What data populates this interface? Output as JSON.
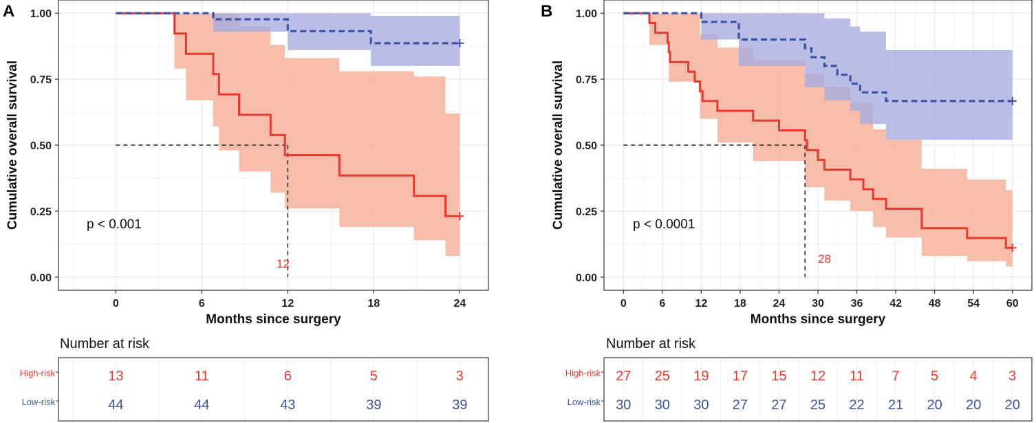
{
  "colors": {
    "high": "#e8392e",
    "low": "#3a53a4",
    "high_band": "#f4b29c",
    "low_band": "#a9acde",
    "grid": "#ebebeb"
  },
  "chart_data": [
    {
      "type": "line",
      "panel_label": "A",
      "ylabel": "Cumulative overall survival",
      "xlabel": "Months since surgery",
      "xlim": [
        -4,
        26
      ],
      "ylim": [
        -0.05,
        1.05
      ],
      "x_ticks": [
        0,
        6,
        12,
        18,
        24
      ],
      "y_ticks": [
        0,
        0.25,
        0.5,
        0.75,
        1
      ],
      "y_tick_labels": [
        "0.00",
        "0.25",
        "0.50",
        "0.75",
        "1.00"
      ],
      "p_value": "p < 0.001",
      "median_label": "12",
      "median_x": 12,
      "high_curve": [
        [
          0,
          1
        ],
        [
          4.1,
          1
        ],
        [
          4.1,
          0.923
        ],
        [
          4.9,
          0.923
        ],
        [
          4.9,
          0.846
        ],
        [
          6.8,
          0.846
        ],
        [
          6.8,
          0.769
        ],
        [
          7.2,
          0.769
        ],
        [
          7.2,
          0.692
        ],
        [
          8.6,
          0.692
        ],
        [
          8.6,
          0.615
        ],
        [
          10.8,
          0.615
        ],
        [
          10.8,
          0.538
        ],
        [
          11.8,
          0.538
        ],
        [
          11.8,
          0.462
        ],
        [
          15.6,
          0.462
        ],
        [
          15.6,
          0.385
        ],
        [
          20.8,
          0.385
        ],
        [
          20.8,
          0.308
        ],
        [
          23,
          0.308
        ],
        [
          23,
          0.231
        ],
        [
          24,
          0.231
        ]
      ],
      "high_band": {
        "x": [
          0,
          4.1,
          4.9,
          6.8,
          7.2,
          8.6,
          10.8,
          11.8,
          15.6,
          20.8,
          23,
          24
        ],
        "upper": [
          1,
          1,
          1,
          1,
          1,
          0.95,
          0.88,
          0.83,
          0.78,
          0.76,
          0.62,
          0.62
        ],
        "lower": [
          1,
          0.79,
          0.67,
          0.57,
          0.48,
          0.4,
          0.32,
          0.26,
          0.19,
          0.14,
          0.08,
          0.08
        ]
      },
      "low_curve": [
        [
          0,
          1
        ],
        [
          6.8,
          1
        ],
        [
          6.8,
          0.977
        ],
        [
          12,
          0.977
        ],
        [
          12,
          0.932
        ],
        [
          17.8,
          0.932
        ],
        [
          17.8,
          0.886
        ],
        [
          24,
          0.886
        ]
      ],
      "low_band": {
        "x": [
          0,
          6.8,
          12,
          17.8,
          24
        ],
        "upper": [
          1,
          1,
          1,
          0.99,
          0.99
        ],
        "lower": [
          1,
          0.93,
          0.86,
          0.8,
          0.8
        ]
      },
      "risk": {
        "title": "Number at risk",
        "high_label": "High-risk",
        "low_label": "Low-risk",
        "times": [
          0,
          6,
          12,
          18,
          24
        ],
        "high": [
          "13",
          "11",
          "6",
          "5",
          "3"
        ],
        "low": [
          "44",
          "44",
          "43",
          "39",
          "39"
        ]
      }
    },
    {
      "type": "line",
      "panel_label": "B",
      "ylabel": "Cumulative overall survival",
      "xlabel": "Months since surgery",
      "xlim": [
        -3,
        63
      ],
      "ylim": [
        -0.05,
        1.05
      ],
      "x_ticks": [
        0,
        6,
        12,
        18,
        24,
        30,
        36,
        42,
        48,
        54,
        60
      ],
      "y_ticks": [
        0,
        0.25,
        0.5,
        0.75,
        1
      ],
      "y_tick_labels": [
        "0.00",
        "0.25",
        "0.50",
        "0.75",
        "1.00"
      ],
      "p_value": "p < 0.0001",
      "median_label": "28",
      "median_x": 28,
      "high_curve": [
        [
          0,
          1
        ],
        [
          4,
          1
        ],
        [
          4,
          0.963
        ],
        [
          4.9,
          0.963
        ],
        [
          4.9,
          0.926
        ],
        [
          6.8,
          0.926
        ],
        [
          6.8,
          0.889
        ],
        [
          7,
          0.889
        ],
        [
          7,
          0.852
        ],
        [
          7.2,
          0.852
        ],
        [
          7.2,
          0.815
        ],
        [
          10,
          0.815
        ],
        [
          10,
          0.778
        ],
        [
          11,
          0.778
        ],
        [
          11,
          0.741
        ],
        [
          11.8,
          0.741
        ],
        [
          11.8,
          0.704
        ],
        [
          12.2,
          0.704
        ],
        [
          12.2,
          0.667
        ],
        [
          14.5,
          0.667
        ],
        [
          14.5,
          0.63
        ],
        [
          20,
          0.63
        ],
        [
          20,
          0.593
        ],
        [
          24,
          0.593
        ],
        [
          24,
          0.556
        ],
        [
          28,
          0.556
        ],
        [
          28,
          0.519
        ],
        [
          28.3,
          0.519
        ],
        [
          28.3,
          0.481
        ],
        [
          30,
          0.481
        ],
        [
          30,
          0.444
        ],
        [
          31,
          0.444
        ],
        [
          31,
          0.407
        ],
        [
          35,
          0.407
        ],
        [
          35,
          0.37
        ],
        [
          37,
          0.37
        ],
        [
          37,
          0.333
        ],
        [
          38.5,
          0.333
        ],
        [
          38.5,
          0.296
        ],
        [
          40.5,
          0.296
        ],
        [
          40.5,
          0.259
        ],
        [
          46,
          0.259
        ],
        [
          46,
          0.185
        ],
        [
          53,
          0.185
        ],
        [
          53,
          0.148
        ],
        [
          59,
          0.148
        ],
        [
          59,
          0.111
        ],
        [
          60,
          0.111
        ]
      ],
      "high_band": {
        "x": [
          0,
          4,
          7,
          11.8,
          14.5,
          20,
          28,
          31,
          35,
          38.5,
          40.5,
          46,
          53,
          59,
          60
        ],
        "upper": [
          1,
          1,
          1,
          0.92,
          0.87,
          0.82,
          0.77,
          0.72,
          0.66,
          0.56,
          0.52,
          0.41,
          0.37,
          0.33,
          0.33
        ],
        "lower": [
          1,
          0.88,
          0.74,
          0.6,
          0.51,
          0.44,
          0.34,
          0.29,
          0.25,
          0.19,
          0.15,
          0.08,
          0.06,
          0.04,
          0.04
        ]
      },
      "low_curve": [
        [
          0,
          1
        ],
        [
          12,
          1
        ],
        [
          12,
          0.967
        ],
        [
          17.8,
          0.967
        ],
        [
          17.8,
          0.9
        ],
        [
          28,
          0.9
        ],
        [
          28,
          0.867
        ],
        [
          29,
          0.867
        ],
        [
          29,
          0.833
        ],
        [
          31,
          0.833
        ],
        [
          31,
          0.8
        ],
        [
          33,
          0.8
        ],
        [
          33,
          0.767
        ],
        [
          35,
          0.767
        ],
        [
          35,
          0.733
        ],
        [
          36.5,
          0.733
        ],
        [
          36.5,
          0.7
        ],
        [
          40.5,
          0.7
        ],
        [
          40.5,
          0.667
        ],
        [
          60,
          0.667
        ]
      ],
      "low_band": {
        "x": [
          0,
          12,
          17.8,
          28,
          31,
          35,
          36.5,
          40.5,
          60
        ],
        "upper": [
          1,
          1,
          1,
          1,
          0.98,
          0.95,
          0.93,
          0.86,
          0.86
        ],
        "lower": [
          1,
          0.9,
          0.8,
          0.72,
          0.67,
          0.63,
          0.58,
          0.52,
          0.52
        ]
      },
      "risk": {
        "title": "Number at risk",
        "high_label": "High-risk",
        "low_label": "Low-risk",
        "times": [
          0,
          6,
          12,
          18,
          24,
          30,
          36,
          42,
          48,
          54,
          60
        ],
        "high": [
          "27",
          "25",
          "19",
          "17",
          "15",
          "12",
          "11",
          "7",
          "5",
          "4",
          "3"
        ],
        "low": [
          "30",
          "30",
          "30",
          "27",
          "27",
          "25",
          "22",
          "21",
          "20",
          "20",
          "20"
        ]
      }
    }
  ]
}
